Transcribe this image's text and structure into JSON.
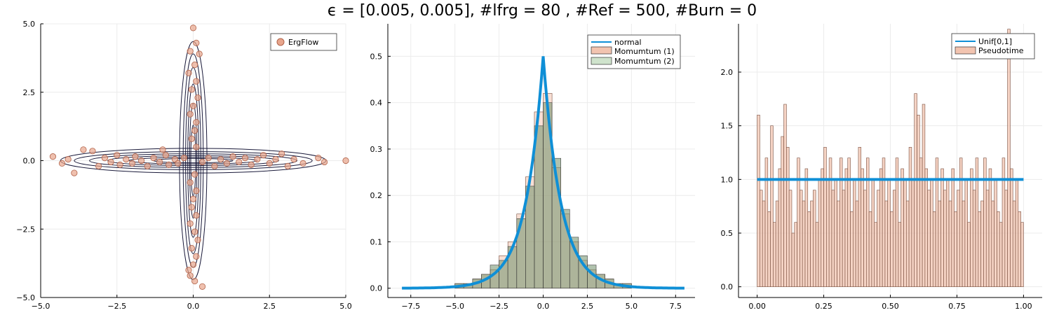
{
  "title": "ϵ = [0.005, 0.005], #lfrg = 80 , #Ref = 500, #Burn = 0",
  "colors": {
    "scatter_fill": "#e8a58c",
    "scatter_edge": "#b0634a",
    "contour": "#1a1a3a",
    "line": "#0f8fd6",
    "hist1_fill": "#f2c4b0",
    "hist2_fill": "#6f8f6a",
    "hist2_edge": "#3f3f3f",
    "grid": "#ececec"
  },
  "chart_data": [
    {
      "type": "scatter",
      "xlim": [
        -5,
        5
      ],
      "ylim": [
        -5,
        5
      ],
      "xticks": [
        "−5.0",
        "−2.5",
        "0.0",
        "2.5",
        "5.0"
      ],
      "yticks": [
        "−5.0",
        "−2.5",
        "0.0",
        "2.5",
        "5.0"
      ],
      "xtick_values": [
        -5,
        -2.5,
        0,
        2.5,
        5
      ],
      "ytick_values": [
        -5,
        -2.5,
        0,
        2.5,
        5
      ],
      "grid": true,
      "legend_position": "top-right",
      "series": [
        {
          "name": "ErgFlow",
          "points": [
            [
              -4.6,
              0.15
            ],
            [
              -4.3,
              -0.1
            ],
            [
              -4.1,
              0.05
            ],
            [
              -3.9,
              -0.45
            ],
            [
              -3.6,
              0.4
            ],
            [
              -3.3,
              0.35
            ],
            [
              -3.1,
              -0.2
            ],
            [
              -2.9,
              0.1
            ],
            [
              -2.7,
              -0.05
            ],
            [
              -2.5,
              0.2
            ],
            [
              -2.4,
              -0.15
            ],
            [
              -2.2,
              0.05
            ],
            [
              -2.0,
              -0.1
            ],
            [
              -1.9,
              0.15
            ],
            [
              -1.7,
              0.0
            ],
            [
              -1.5,
              -0.2
            ],
            [
              -1.3,
              0.1
            ],
            [
              -1.1,
              -0.05
            ],
            [
              -1.0,
              0.4
            ],
            [
              -0.9,
              0.2
            ],
            [
              -0.8,
              -0.15
            ],
            [
              -0.6,
              0.05
            ],
            [
              -0.5,
              -0.1
            ],
            [
              -0.3,
              0.1
            ],
            [
              0.3,
              -0.05
            ],
            [
              0.5,
              0.1
            ],
            [
              0.7,
              -0.2
            ],
            [
              0.9,
              0.05
            ],
            [
              1.1,
              -0.1
            ],
            [
              1.3,
              0.15
            ],
            [
              1.5,
              -0.05
            ],
            [
              1.7,
              0.1
            ],
            [
              1.9,
              -0.15
            ],
            [
              2.1,
              0.05
            ],
            [
              2.3,
              0.2
            ],
            [
              2.5,
              -0.1
            ],
            [
              2.7,
              0.05
            ],
            [
              2.9,
              0.25
            ],
            [
              3.1,
              -0.2
            ],
            [
              3.3,
              0.05
            ],
            [
              3.6,
              -0.1
            ],
            [
              4.1,
              0.1
            ],
            [
              4.3,
              -0.05
            ],
            [
              5.0,
              0.0
            ],
            [
              0.0,
              4.85
            ],
            [
              0.1,
              4.3
            ],
            [
              -0.1,
              4.0
            ],
            [
              0.2,
              3.9
            ],
            [
              0.05,
              3.5
            ],
            [
              -0.15,
              3.2
            ],
            [
              0.1,
              2.9
            ],
            [
              -0.05,
              2.6
            ],
            [
              0.15,
              2.3
            ],
            [
              0.0,
              2.0
            ],
            [
              -0.1,
              1.7
            ],
            [
              0.1,
              1.4
            ],
            [
              0.05,
              1.1
            ],
            [
              -0.05,
              0.8
            ],
            [
              0.1,
              0.5
            ],
            [
              0.05,
              -0.5
            ],
            [
              -0.1,
              -0.8
            ],
            [
              0.1,
              -1.1
            ],
            [
              0.0,
              -1.4
            ],
            [
              -0.05,
              -1.7
            ],
            [
              0.1,
              -2.0
            ],
            [
              -0.1,
              -2.3
            ],
            [
              0.05,
              -2.6
            ],
            [
              0.15,
              -2.9
            ],
            [
              -0.05,
              -3.2
            ],
            [
              0.1,
              -3.5
            ],
            [
              0.0,
              -3.8
            ],
            [
              -0.15,
              -4.0
            ],
            [
              -0.1,
              -4.2
            ],
            [
              0.05,
              -4.4
            ],
            [
              0.3,
              -4.6
            ]
          ]
        }
      ]
    },
    {
      "type": "bar",
      "xlim": [
        -8.8,
        8.6
      ],
      "ylim": [
        -0.02,
        0.57
      ],
      "xticks": [
        "−7.5",
        "−5.0",
        "−2.5",
        "0.0",
        "2.5",
        "5.0",
        "7.5"
      ],
      "yticks": [
        "0.0",
        "0.1",
        "0.2",
        "0.3",
        "0.4",
        "0.5"
      ],
      "xtick_values": [
        -7.5,
        -5,
        -2.5,
        0,
        2.5,
        5,
        7.5
      ],
      "ytick_values": [
        0,
        0.1,
        0.2,
        0.3,
        0.4,
        0.5
      ],
      "grid": true,
      "legend_position": "top-right",
      "series": [
        {
          "name": "normal",
          "type": "line",
          "x_range": [
            -8,
            8
          ]
        },
        {
          "name": "Momumtum (1)",
          "type": "histogram",
          "bins": [
            -5,
            -4.5,
            -4,
            -3.5,
            -3,
            -2.5,
            -2,
            -1.5,
            -1,
            -0.5,
            0,
            0.5,
            1,
            1.5,
            2,
            2.5,
            3,
            3.5,
            4,
            4.5,
            5
          ],
          "values": [
            0.01,
            0.01,
            0.02,
            0.03,
            0.04,
            0.07,
            0.1,
            0.16,
            0.24,
            0.38,
            0.42,
            0.26,
            0.16,
            0.1,
            0.06,
            0.04,
            0.03,
            0.02,
            0.01,
            0.01
          ]
        },
        {
          "name": "Momumtum (2)",
          "type": "histogram",
          "bins": [
            -5,
            -4.5,
            -4,
            -3.5,
            -3,
            -2.5,
            -2,
            -1.5,
            -1,
            -0.5,
            0,
            0.5,
            1,
            1.5,
            2,
            2.5,
            3,
            3.5,
            4,
            4.5,
            5
          ],
          "values": [
            0.01,
            0.01,
            0.02,
            0.03,
            0.05,
            0.06,
            0.09,
            0.15,
            0.22,
            0.35,
            0.4,
            0.28,
            0.17,
            0.11,
            0.07,
            0.05,
            0.03,
            0.02,
            0.01,
            0.01
          ]
        }
      ]
    },
    {
      "type": "bar",
      "xlim": [
        -0.07,
        1.07
      ],
      "ylim": [
        -0.1,
        2.45
      ],
      "xticks": [
        "0.00",
        "0.25",
        "0.50",
        "0.75",
        "1.00"
      ],
      "yticks": [
        "0.0",
        "0.5",
        "1.0",
        "1.5",
        "2.0"
      ],
      "xtick_values": [
        0,
        0.25,
        0.5,
        0.75,
        1.0
      ],
      "ytick_values": [
        0,
        0.5,
        1.0,
        1.5,
        2.0
      ],
      "grid": true,
      "legend_position": "top-right",
      "series": [
        {
          "name": "Unif[0,1]",
          "type": "line",
          "x_range": [
            0,
            1
          ],
          "value": 1.0
        },
        {
          "name": "Pseudotime",
          "type": "histogram",
          "bin_width": 0.01,
          "values": [
            1.6,
            0.9,
            0.8,
            1.2,
            0.7,
            1.5,
            0.6,
            0.8,
            1.1,
            1.4,
            1.7,
            1.3,
            0.9,
            0.5,
            0.6,
            1.2,
            0.9,
            0.8,
            1.1,
            0.7,
            0.8,
            0.9,
            0.6,
            1.0,
            1.1,
            1.3,
            1.0,
            1.2,
            0.9,
            1.0,
            0.8,
            1.2,
            0.9,
            1.1,
            1.2,
            0.7,
            1.0,
            0.8,
            1.3,
            1.1,
            0.9,
            1.2,
            0.7,
            1.0,
            0.6,
            0.9,
            1.1,
            1.2,
            0.8,
            1.0,
            0.7,
            0.9,
            1.2,
            0.6,
            1.1,
            1.0,
            0.8,
            1.3,
            1.0,
            1.8,
            1.6,
            1.2,
            1.7,
            1.1,
            0.9,
            1.0,
            0.7,
            1.2,
            0.8,
            1.1,
            0.9,
            1.0,
            0.8,
            1.1,
            0.7,
            0.9,
            1.2,
            0.8,
            1.0,
            0.6,
            1.1,
            0.9,
            1.2,
            0.7,
            0.8,
            1.2,
            0.9,
            1.1,
            0.8,
            1.0,
            0.7,
            0.6,
            1.2,
            0.9,
            2.4,
            1.1,
            0.8,
            1.0,
            0.7,
            0.6
          ]
        }
      ]
    }
  ]
}
